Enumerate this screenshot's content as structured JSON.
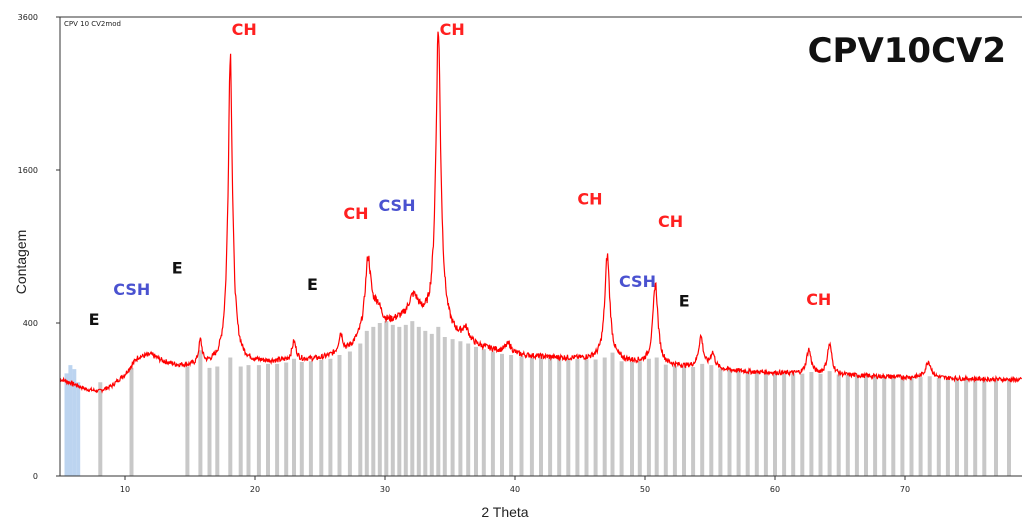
{
  "chart_data": {
    "type": "line",
    "title": "CPV10CV2",
    "sample_label": "CPV 10 CV2mod",
    "xlabel": "2 Theta",
    "ylabel": "Contagem",
    "xlim": [
      5,
      79
    ],
    "y_ticks": [
      0,
      400,
      1600,
      3600
    ],
    "x_ticks": [
      10,
      20,
      30,
      40,
      50,
      60,
      70
    ],
    "series_color": "#ff0000",
    "reference_color": "#c8c8c8",
    "baseline_points": [
      [
        5,
        160
      ],
      [
        6,
        145
      ],
      [
        7,
        128
      ],
      [
        8,
        122
      ],
      [
        9,
        138
      ],
      [
        10,
        175
      ],
      [
        11,
        240
      ],
      [
        12,
        250
      ],
      [
        13,
        222
      ],
      [
        14,
        208
      ],
      [
        15,
        205
      ],
      [
        17,
        208
      ],
      [
        19,
        215
      ],
      [
        22,
        222
      ],
      [
        25,
        232
      ],
      [
        27,
        255
      ],
      [
        29,
        340
      ],
      [
        31,
        395
      ],
      [
        33,
        380
      ],
      [
        35,
        322
      ],
      [
        37,
        282
      ],
      [
        40,
        248
      ],
      [
        43,
        238
      ],
      [
        46,
        232
      ],
      [
        49,
        220
      ],
      [
        52,
        206
      ],
      [
        55,
        196
      ],
      [
        58,
        185
      ],
      [
        62,
        178
      ],
      [
        66,
        172
      ],
      [
        70,
        166
      ],
      [
        74,
        162
      ],
      [
        79,
        158
      ]
    ],
    "peaks": [
      {
        "x": 15.8,
        "h": 100,
        "w": 0.15
      },
      {
        "x": 18.1,
        "h": 2850,
        "w": 0.15
      },
      {
        "x": 23.0,
        "h": 80,
        "w": 0.18
      },
      {
        "x": 26.6,
        "h": 90,
        "w": 0.18
      },
      {
        "x": 28.7,
        "h": 460,
        "w": 0.25
      },
      {
        "x": 29.4,
        "h": 120,
        "w": 0.4
      },
      {
        "x": 32.2,
        "h": 150,
        "w": 0.5
      },
      {
        "x": 34.1,
        "h": 3050,
        "w": 0.18
      },
      {
        "x": 36.2,
        "h": 60,
        "w": 0.3
      },
      {
        "x": 39.5,
        "h": 40,
        "w": 0.3
      },
      {
        "x": 47.1,
        "h": 600,
        "w": 0.2
      },
      {
        "x": 50.8,
        "h": 420,
        "w": 0.2
      },
      {
        "x": 54.3,
        "h": 130,
        "w": 0.2
      },
      {
        "x": 55.2,
        "h": 60,
        "w": 0.2
      },
      {
        "x": 62.6,
        "h": 95,
        "w": 0.2
      },
      {
        "x": 64.2,
        "h": 120,
        "w": 0.2
      },
      {
        "x": 71.8,
        "h": 60,
        "w": 0.25
      }
    ],
    "reference_lines": [
      [
        5.5,
        180,
        "#bcd4f0"
      ],
      [
        5.8,
        210,
        "#bcd4f0"
      ],
      [
        6.1,
        195,
        "#bcd4f0"
      ],
      [
        6.4,
        150,
        "#bcd4f0"
      ],
      [
        8.1,
        150
      ],
      [
        10.5,
        200
      ],
      [
        14.8,
        205
      ],
      [
        15.8,
        270
      ],
      [
        16.5,
        200
      ],
      [
        17.1,
        205
      ],
      [
        18.1,
        240
      ],
      [
        18.9,
        205
      ],
      [
        19.5,
        210
      ],
      [
        20.3,
        210
      ],
      [
        21.0,
        215
      ],
      [
        21.7,
        215
      ],
      [
        22.4,
        220
      ],
      [
        23.0,
        235
      ],
      [
        23.6,
        222
      ],
      [
        24.3,
        225
      ],
      [
        25.1,
        230
      ],
      [
        25.8,
        235
      ],
      [
        26.5,
        250
      ],
      [
        27.3,
        265
      ],
      [
        28.1,
        300
      ],
      [
        28.6,
        360
      ],
      [
        29.1,
        380
      ],
      [
        29.6,
        400
      ],
      [
        30.1,
        410
      ],
      [
        30.6,
        390
      ],
      [
        31.1,
        380
      ],
      [
        31.6,
        390
      ],
      [
        32.1,
        410
      ],
      [
        32.6,
        380
      ],
      [
        33.1,
        360
      ],
      [
        33.6,
        345
      ],
      [
        34.1,
        380
      ],
      [
        34.6,
        330
      ],
      [
        35.2,
        320
      ],
      [
        35.8,
        310
      ],
      [
        36.4,
        300
      ],
      [
        37.0,
        285
      ],
      [
        37.6,
        275
      ],
      [
        38.3,
        265
      ],
      [
        39.0,
        255
      ],
      [
        39.7,
        250
      ],
      [
        40.5,
        245
      ],
      [
        41.3,
        240
      ],
      [
        42.0,
        240
      ],
      [
        42.7,
        238
      ],
      [
        43.4,
        236
      ],
      [
        44.1,
        235
      ],
      [
        44.8,
        234
      ],
      [
        45.5,
        233
      ],
      [
        46.2,
        232
      ],
      [
        46.9,
        240
      ],
      [
        47.5,
        260
      ],
      [
        48.2,
        225
      ],
      [
        49.0,
        222
      ],
      [
        49.6,
        225
      ],
      [
        50.3,
        235
      ],
      [
        50.9,
        240
      ],
      [
        51.6,
        212
      ],
      [
        52.3,
        208
      ],
      [
        53.0,
        205
      ],
      [
        53.7,
        203
      ],
      [
        54.4,
        215
      ],
      [
        55.1,
        210
      ],
      [
        55.8,
        198
      ],
      [
        56.5,
        195
      ],
      [
        57.2,
        192
      ],
      [
        57.9,
        190
      ],
      [
        58.6,
        188
      ],
      [
        59.3,
        185
      ],
      [
        60.0,
        183
      ],
      [
        60.7,
        182
      ],
      [
        61.4,
        180
      ],
      [
        62.1,
        179
      ],
      [
        62.8,
        185
      ],
      [
        63.5,
        178
      ],
      [
        64.2,
        188
      ],
      [
        64.9,
        176
      ],
      [
        65.6,
        175
      ],
      [
        66.3,
        174
      ],
      [
        67.0,
        173
      ],
      [
        67.7,
        172
      ],
      [
        68.4,
        170
      ],
      [
        69.1,
        170
      ],
      [
        69.8,
        168
      ],
      [
        70.5,
        168
      ],
      [
        71.2,
        167
      ],
      [
        71.9,
        170
      ],
      [
        72.6,
        165
      ],
      [
        73.3,
        164
      ],
      [
        74.0,
        163
      ],
      [
        74.7,
        162
      ],
      [
        75.4,
        162
      ],
      [
        76.1,
        161
      ],
      [
        77.0,
        160
      ],
      [
        78.0,
        159
      ]
    ],
    "annotations": [
      {
        "text": "CH",
        "x": 18.2,
        "y": 3320,
        "color": "#ff2020"
      },
      {
        "text": "CH",
        "x": 34.2,
        "y": 3320,
        "color": "#ff2020"
      },
      {
        "text": "CH",
        "x": 26.8,
        "y": 1130,
        "color": "#ff2020"
      },
      {
        "text": "CSH",
        "x": 29.5,
        "y": 1200,
        "color": "#4a52d0"
      },
      {
        "text": "CH",
        "x": 44.8,
        "y": 1260,
        "color": "#ff2020"
      },
      {
        "text": "CH",
        "x": 51.0,
        "y": 1060,
        "color": "#ff2020"
      },
      {
        "text": "CSH",
        "x": 48.0,
        "y": 610,
        "color": "#4a52d0"
      },
      {
        "text": "CH",
        "x": 62.4,
        "y": 500,
        "color": "#ff2020"
      },
      {
        "text": "CSH",
        "x": 9.1,
        "y": 560,
        "color": "#4a52d0"
      },
      {
        "text": "E",
        "x": 13.6,
        "y": 700,
        "color": "#111111"
      },
      {
        "text": "E",
        "x": 24.0,
        "y": 590,
        "color": "#111111"
      },
      {
        "text": "E",
        "x": 7.2,
        "y": 390,
        "color": "#111111"
      },
      {
        "text": "E",
        "x": 52.6,
        "y": 490,
        "color": "#111111"
      }
    ]
  }
}
